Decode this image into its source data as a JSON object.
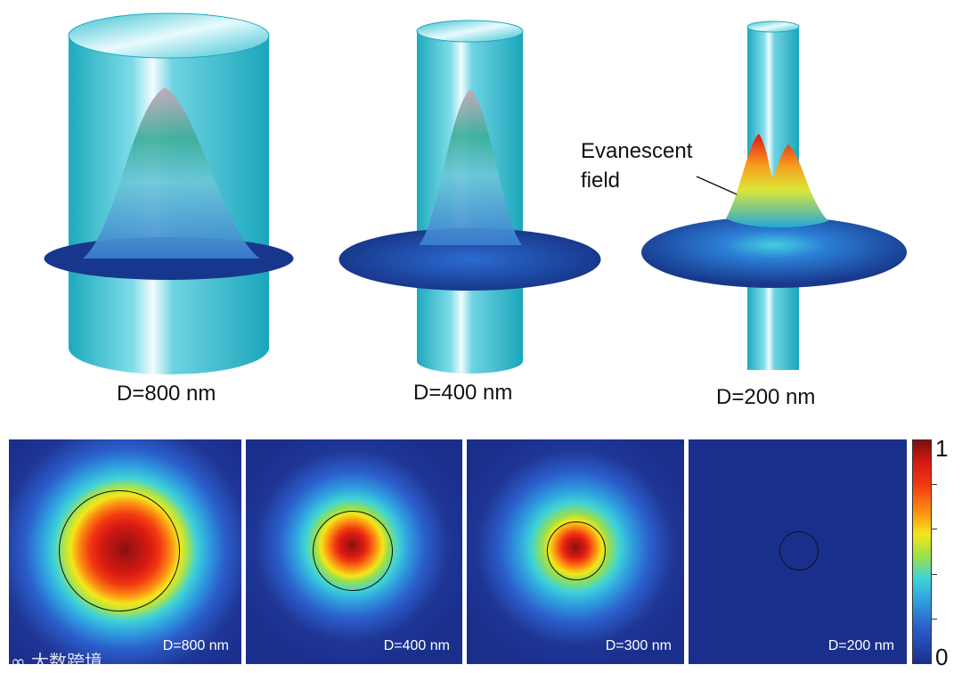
{
  "top_fibers": [
    {
      "label": "D=800 nm"
    },
    {
      "label": "D=400 nm"
    },
    {
      "label": "D=200 nm"
    }
  ],
  "annotation": {
    "line1": "Evanescent",
    "line2": "field"
  },
  "bottom_panels": [
    {
      "label": "D=800 nm"
    },
    {
      "label": "D=400 nm"
    },
    {
      "label": "D=300 nm"
    },
    {
      "label": "D=200 nm"
    }
  ],
  "colorbar": {
    "max_label": "1",
    "min_label": "0",
    "ticks": [
      0.2,
      0.4,
      0.6,
      0.8
    ]
  },
  "watermark": "大数跨境",
  "colors": {
    "cylinder": "#25b6c9",
    "disk": "#1b3f91",
    "background_field": "#1a2f8c"
  }
}
